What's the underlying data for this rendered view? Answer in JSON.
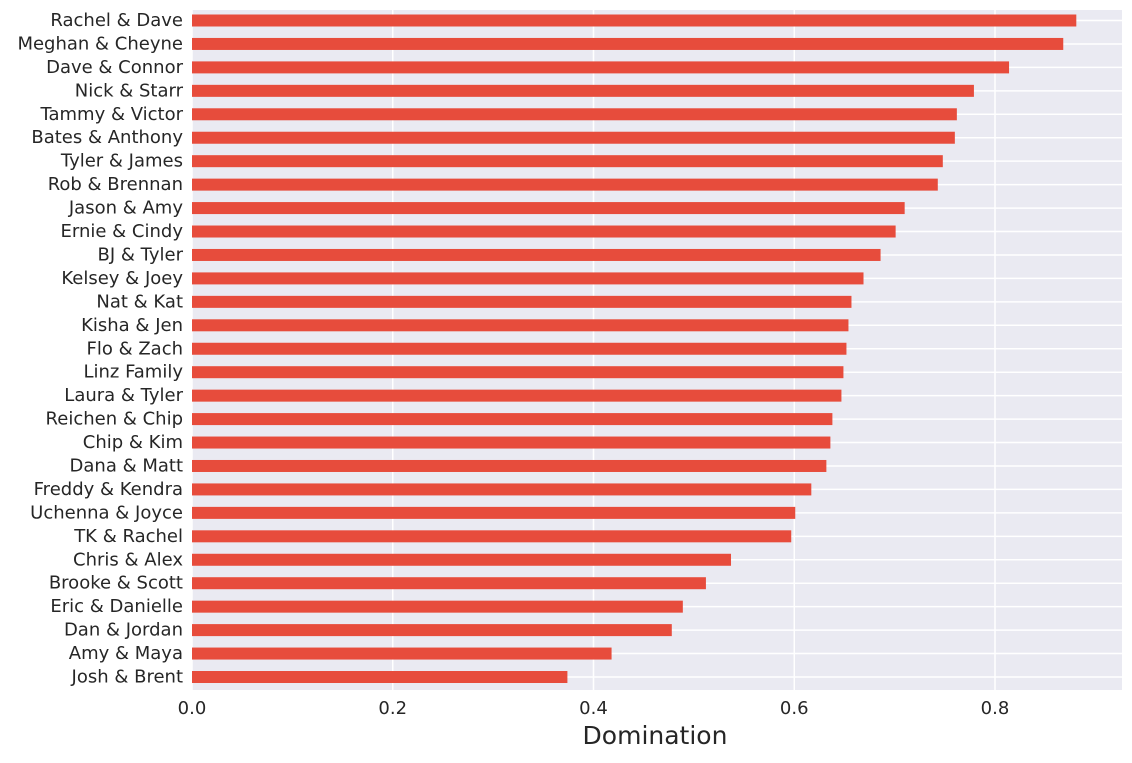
{
  "chart_data": {
    "type": "bar",
    "orientation": "horizontal",
    "xlabel": "Domination",
    "xlim": [
      0,
      0.925
    ],
    "xticks": [
      0.0,
      0.2,
      0.4,
      0.6,
      0.8
    ],
    "xtick_labels": [
      "0.0",
      "0.2",
      "0.4",
      "0.6",
      "0.8"
    ],
    "grid": true,
    "bar_color": "#E74C3C",
    "background_color": "#EAEAF2",
    "grid_color": "#FFFFFF",
    "categories": [
      "Rachel & Dave",
      "Meghan & Cheyne",
      "Dave & Connor",
      "Nick & Starr",
      "Tammy & Victor",
      "Bates & Anthony",
      "Tyler & James",
      "Rob & Brennan",
      "Jason & Amy",
      "Ernie & Cindy",
      "BJ & Tyler",
      "Kelsey & Joey",
      "Nat & Kat",
      "Kisha & Jen",
      "Flo & Zach",
      "Linz Family",
      "Laura & Tyler",
      "Reichen & Chip",
      "Chip & Kim",
      "Dana & Matt",
      "Freddy & Kendra",
      "Uchenna & Joyce",
      "TK & Rachel",
      "Chris & Alex",
      "Brooke & Scott",
      "Eric & Danielle",
      "Dan & Jordan",
      "Amy & Maya",
      "Josh & Brent"
    ],
    "values": [
      0.881,
      0.868,
      0.814,
      0.779,
      0.762,
      0.76,
      0.748,
      0.743,
      0.71,
      0.701,
      0.686,
      0.669,
      0.657,
      0.654,
      0.652,
      0.649,
      0.647,
      0.638,
      0.636,
      0.632,
      0.617,
      0.601,
      0.597,
      0.537,
      0.512,
      0.489,
      0.478,
      0.418,
      0.374
    ]
  }
}
